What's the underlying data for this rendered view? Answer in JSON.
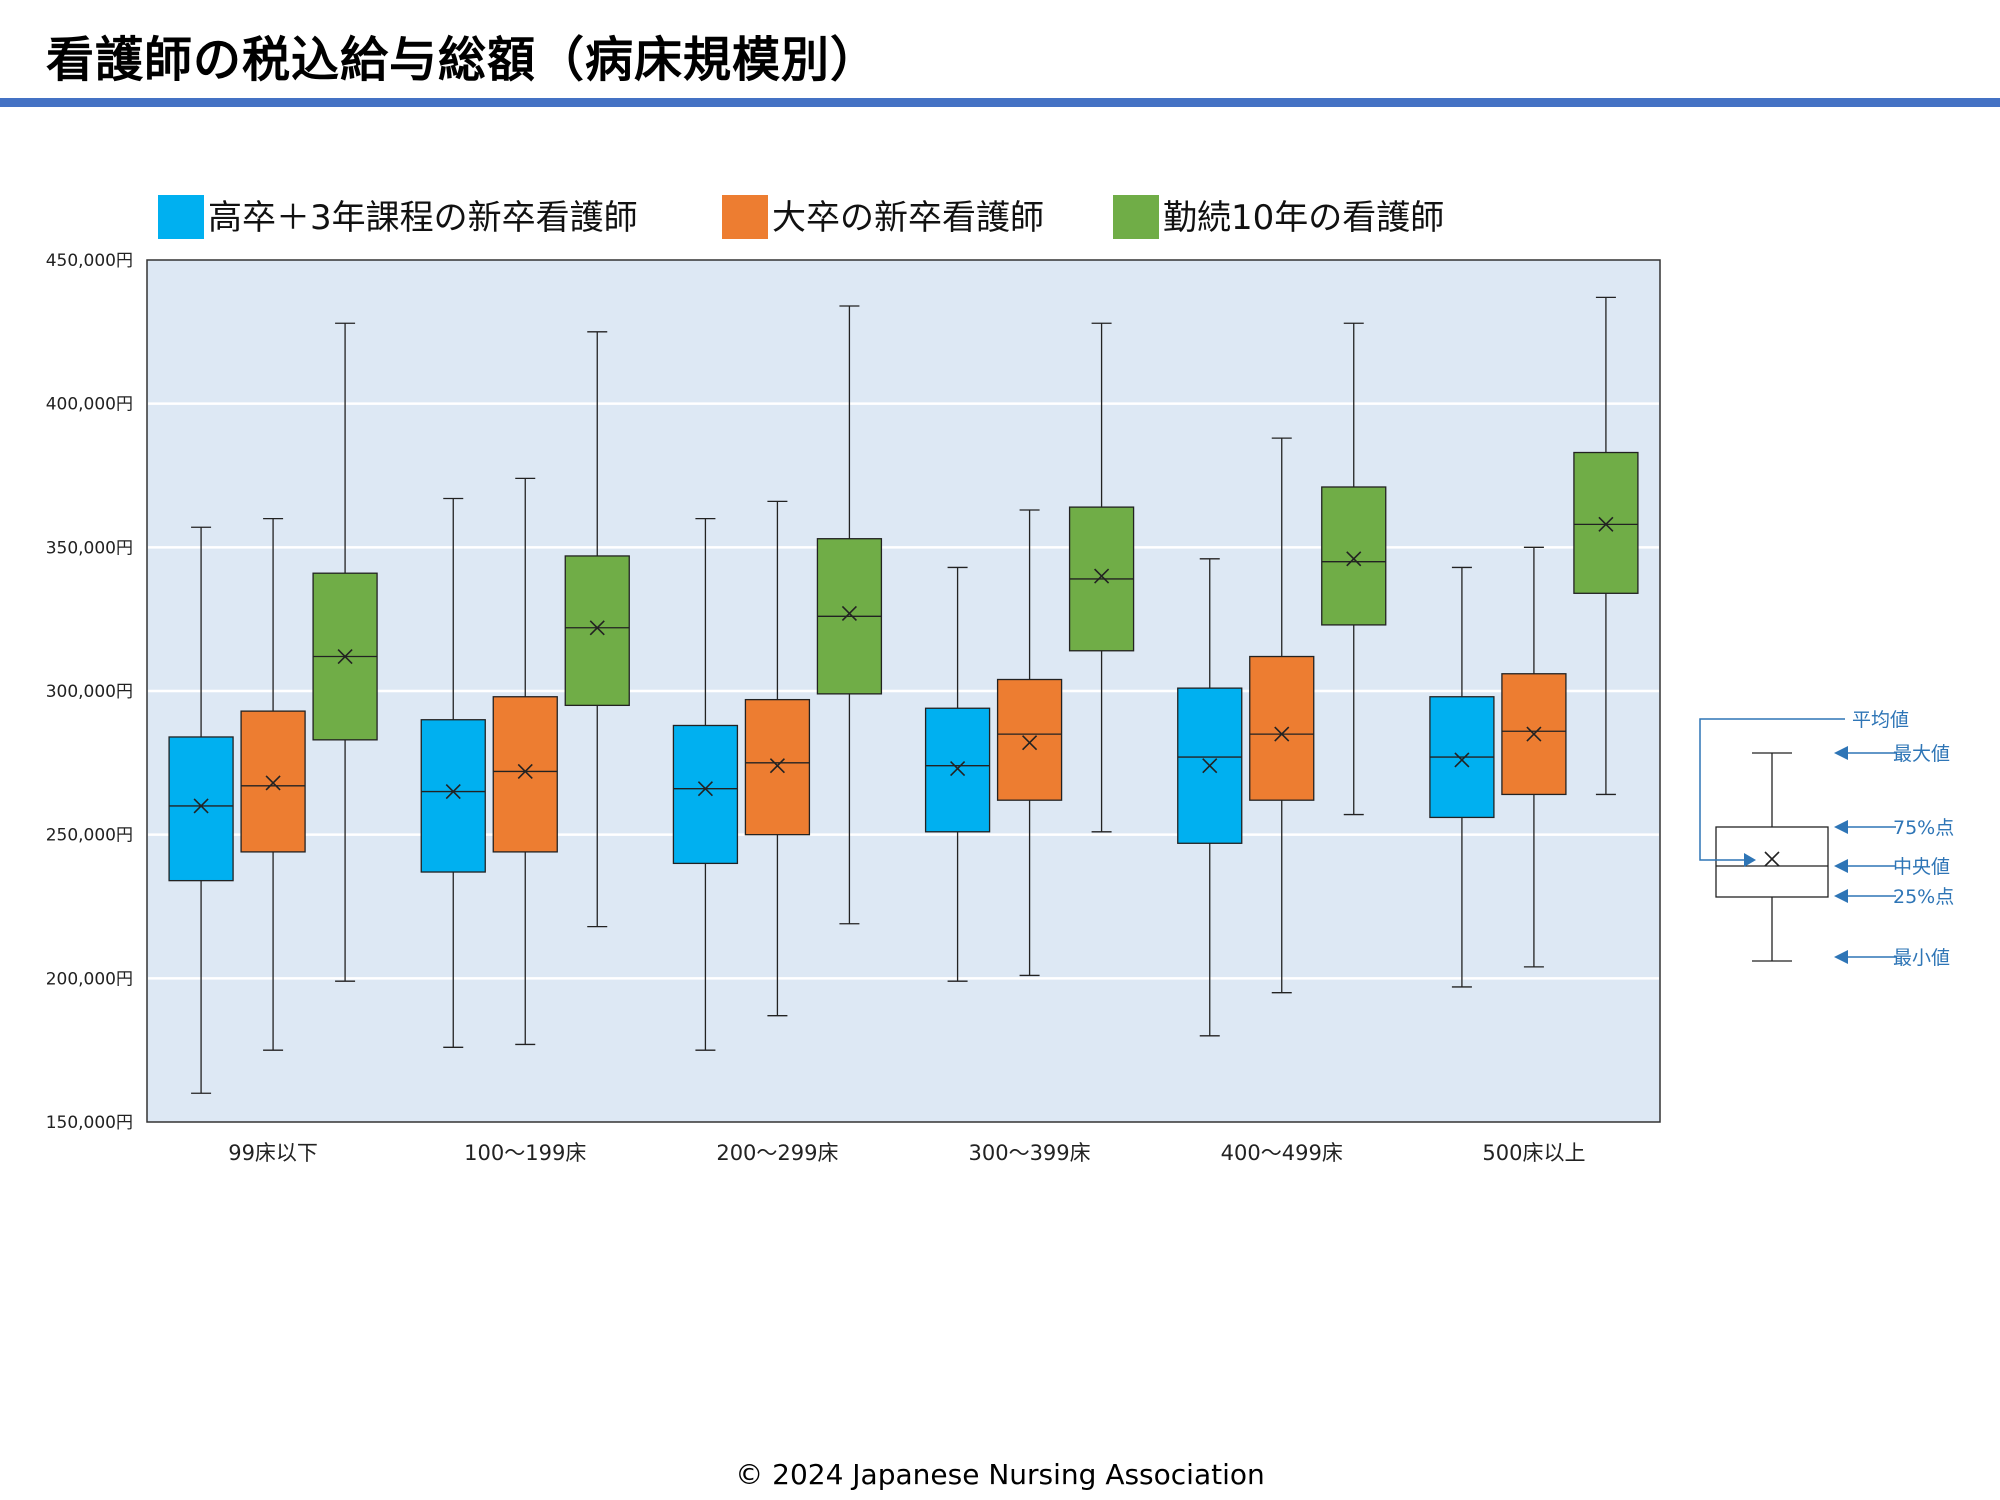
{
  "page": {
    "title": "看護師の税込給与総額（病床規模別）",
    "footer": "© 2024 Japanese Nursing Association"
  },
  "chart_data": {
    "type": "boxplot",
    "title": "看護師の税込給与総額（病床規模別）",
    "xlabel": "",
    "ylabel": "",
    "ylim": [
      150000,
      450000
    ],
    "y_ticks": [
      150000,
      200000,
      250000,
      300000,
      350000,
      400000,
      450000
    ],
    "y_tick_labels": [
      "150,000円",
      "200,000円",
      "250,000円",
      "300,000円",
      "350,000円",
      "400,000円",
      "450,000円"
    ],
    "grid": true,
    "legend_position": "top",
    "categories": [
      "99床以下",
      "100～199床",
      "200～299床",
      "300～399床",
      "400～499床",
      "500床以上"
    ],
    "series": [
      {
        "name": "高卒＋3年課程の新卒看護師",
        "color": "#00b0f0",
        "data": [
          {
            "min": 160000,
            "q1": 234000,
            "median": 260000,
            "q3": 284000,
            "max": 357000,
            "mean": 260000
          },
          {
            "min": 176000,
            "q1": 237000,
            "median": 265000,
            "q3": 290000,
            "max": 367000,
            "mean": 265000
          },
          {
            "min": 175000,
            "q1": 240000,
            "median": 266000,
            "q3": 288000,
            "max": 360000,
            "mean": 266000
          },
          {
            "min": 199000,
            "q1": 251000,
            "median": 274000,
            "q3": 294000,
            "max": 343000,
            "mean": 273000
          },
          {
            "min": 180000,
            "q1": 247000,
            "median": 277000,
            "q3": 301000,
            "max": 346000,
            "mean": 274000
          },
          {
            "min": 197000,
            "q1": 256000,
            "median": 277000,
            "q3": 298000,
            "max": 343000,
            "mean": 276000
          }
        ]
      },
      {
        "name": "大卒の新卒看護師",
        "color": "#ed7d31",
        "data": [
          {
            "min": 175000,
            "q1": 244000,
            "median": 267000,
            "q3": 293000,
            "max": 360000,
            "mean": 268000
          },
          {
            "min": 177000,
            "q1": 244000,
            "median": 272000,
            "q3": 298000,
            "max": 374000,
            "mean": 272000
          },
          {
            "min": 187000,
            "q1": 250000,
            "median": 275000,
            "q3": 297000,
            "max": 366000,
            "mean": 274000
          },
          {
            "min": 201000,
            "q1": 262000,
            "median": 285000,
            "q3": 304000,
            "max": 363000,
            "mean": 282000
          },
          {
            "min": 195000,
            "q1": 262000,
            "median": 285000,
            "q3": 312000,
            "max": 388000,
            "mean": 285000
          },
          {
            "min": 204000,
            "q1": 264000,
            "median": 286000,
            "q3": 306000,
            "max": 350000,
            "mean": 285000
          }
        ]
      },
      {
        "name": "勤続10年の看護師",
        "color": "#70ad47",
        "data": [
          {
            "min": 199000,
            "q1": 283000,
            "median": 312000,
            "q3": 341000,
            "max": 428000,
            "mean": 312000
          },
          {
            "min": 218000,
            "q1": 295000,
            "median": 322000,
            "q3": 347000,
            "max": 425000,
            "mean": 322000
          },
          {
            "min": 219000,
            "q1": 299000,
            "median": 326000,
            "q3": 353000,
            "max": 434000,
            "mean": 327000
          },
          {
            "min": 251000,
            "q1": 314000,
            "median": 339000,
            "q3": 364000,
            "max": 428000,
            "mean": 340000
          },
          {
            "min": 257000,
            "q1": 323000,
            "median": 345000,
            "q3": 371000,
            "max": 428000,
            "mean": 346000
          },
          {
            "min": 264000,
            "q1": 334000,
            "median": 358000,
            "q3": 383000,
            "max": 437000,
            "mean": 358000
          }
        ]
      }
    ],
    "explanation_labels": {
      "mean": "平均値",
      "max": "最大値",
      "q3": "75%点",
      "median": "中央値",
      "q1": "25%点",
      "min": "最小値"
    },
    "colors": {
      "plot_background": "#dde8f4",
      "grid": "#ffffff",
      "axis": "#333333",
      "accent_rule": "#4472c4",
      "annotation": "#2e75b6"
    }
  }
}
